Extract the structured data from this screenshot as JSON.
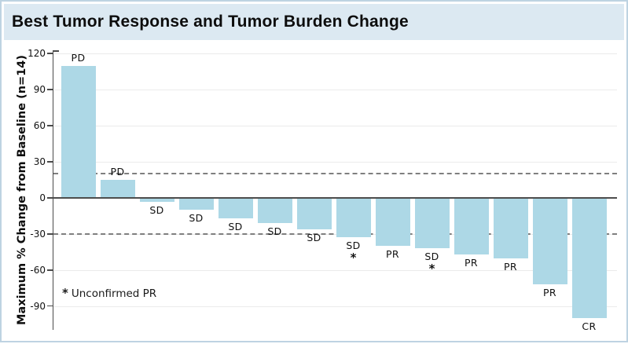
{
  "title_bar": {
    "title": "Best Tumor Response and Tumor Burden Change"
  },
  "chart_data": {
    "type": "bar",
    "title": "Best Tumor Response and Tumor Burden Change",
    "ylabel": "Maximum % Change from Baseline (n=14)",
    "xlabel": "",
    "n": 14,
    "ylim": [
      -105,
      122
    ],
    "yticks": [
      120,
      90,
      60,
      30,
      0,
      -30,
      -60,
      -90
    ],
    "grid": true,
    "legend": "none",
    "reference_lines_dashed": [
      20,
      -30
    ],
    "bar_color": "#ADD8E6",
    "categories": [
      "PD",
      "PD",
      "SD",
      "SD",
      "SD",
      "SD",
      "SD",
      "SD",
      "PR",
      "SD",
      "PR",
      "PR",
      "PR",
      "CR"
    ],
    "bars": [
      {
        "response": "PD",
        "value": 110,
        "asterisk": false
      },
      {
        "response": "PD",
        "value": 15,
        "asterisk": false
      },
      {
        "response": "SD",
        "value": -3,
        "asterisk": false
      },
      {
        "response": "SD",
        "value": -10,
        "asterisk": false
      },
      {
        "response": "SD",
        "value": -17,
        "asterisk": false
      },
      {
        "response": "SD",
        "value": -21,
        "asterisk": false
      },
      {
        "response": "SD",
        "value": -26,
        "asterisk": false
      },
      {
        "response": "SD",
        "value": -33,
        "asterisk": true
      },
      {
        "response": "PR",
        "value": -40,
        "asterisk": false
      },
      {
        "response": "SD",
        "value": -42,
        "asterisk": true
      },
      {
        "response": "PR",
        "value": -47,
        "asterisk": false
      },
      {
        "response": "PR",
        "value": -50,
        "asterisk": false
      },
      {
        "response": "PR",
        "value": -72,
        "asterisk": false
      },
      {
        "response": "CR",
        "value": -100,
        "asterisk": false
      }
    ],
    "footnote": {
      "marker": "*",
      "text": "Unconfirmed PR"
    }
  },
  "colors": {
    "bar": "#ADD8E6",
    "title_background": "#DCE9F2",
    "frame_border": "#BED3E2",
    "zero_line": "#4D4D4D",
    "axis_line": "#4A4A4A",
    "gridline": "#EBEBEB",
    "dashed_line": "#7F7F7F",
    "text": "#111111"
  }
}
